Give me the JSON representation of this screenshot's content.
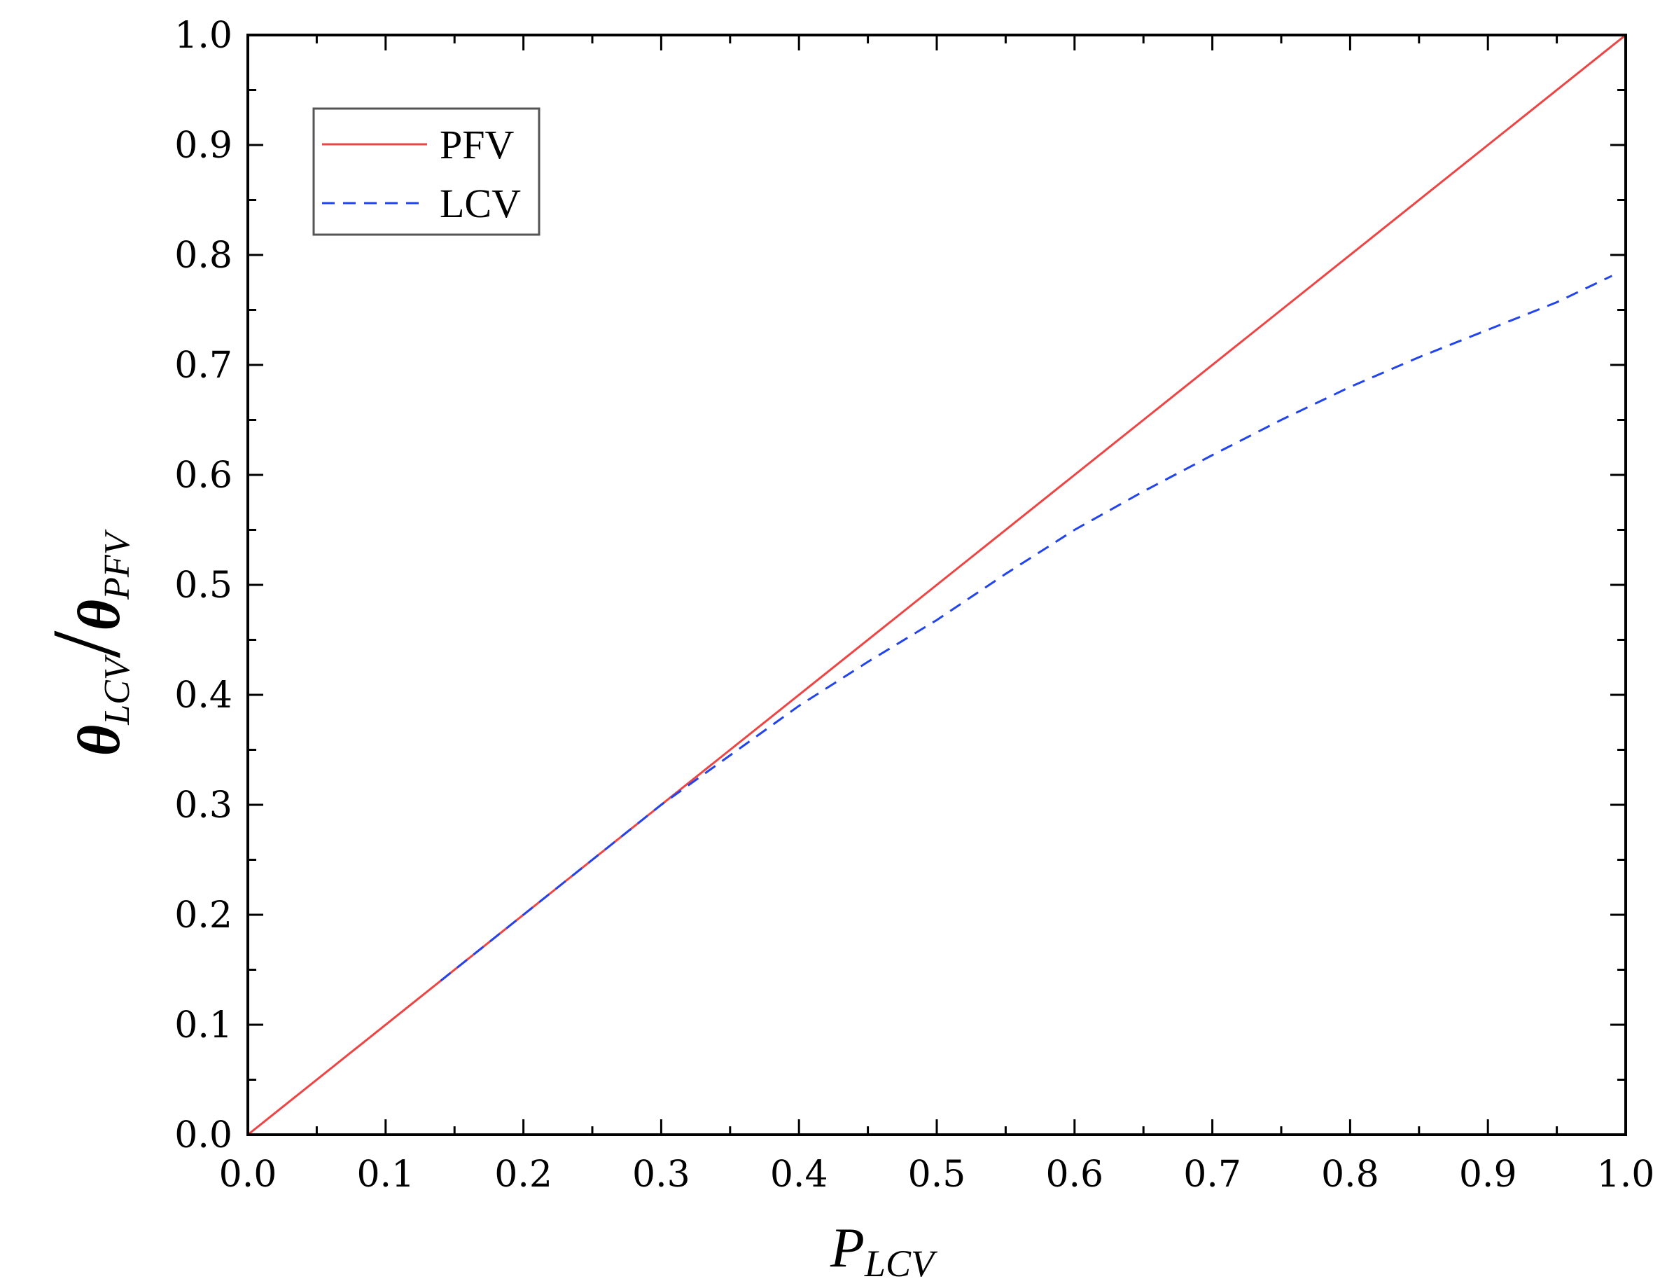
{
  "chart_data": {
    "type": "line",
    "title": "",
    "xlabel": {
      "main": "P",
      "sub": "LCV"
    },
    "ylabel": {
      "numerator": "θ",
      "numerator_sub": "LCV",
      "slash": "/",
      "denominator": "θ",
      "denominator_sub": "PFV"
    },
    "xlim": [
      0.0,
      1.0
    ],
    "ylim": [
      0.0,
      1.0
    ],
    "xticks": [
      "0.0",
      "0.1",
      "0.2",
      "0.3",
      "0.4",
      "0.5",
      "0.6",
      "0.7",
      "0.8",
      "0.9",
      "1.0"
    ],
    "yticks": [
      "0.0",
      "0.1",
      "0.2",
      "0.3",
      "0.4",
      "0.5",
      "0.6",
      "0.7",
      "0.8",
      "0.9",
      "1.0"
    ],
    "grid": false,
    "legend_position": "top-left",
    "series": [
      {
        "name": "PFV",
        "color": "#ee4444",
        "style": "solid",
        "x": [
          0.0,
          1.0
        ],
        "y": [
          0.0,
          1.0
        ]
      },
      {
        "name": "LCV",
        "color": "#2244ee",
        "style": "dashed",
        "x": [
          0.14,
          0.2,
          0.25,
          0.3,
          0.35,
          0.4,
          0.45,
          0.5,
          0.55,
          0.6,
          0.65,
          0.7,
          0.75,
          0.8,
          0.85,
          0.9,
          0.95,
          0.99
        ],
        "y": [
          0.14,
          0.2,
          0.25,
          0.3,
          0.345,
          0.39,
          0.43,
          0.468,
          0.51,
          0.55,
          0.585,
          0.618,
          0.65,
          0.68,
          0.707,
          0.732,
          0.757,
          0.781
        ]
      }
    ]
  }
}
